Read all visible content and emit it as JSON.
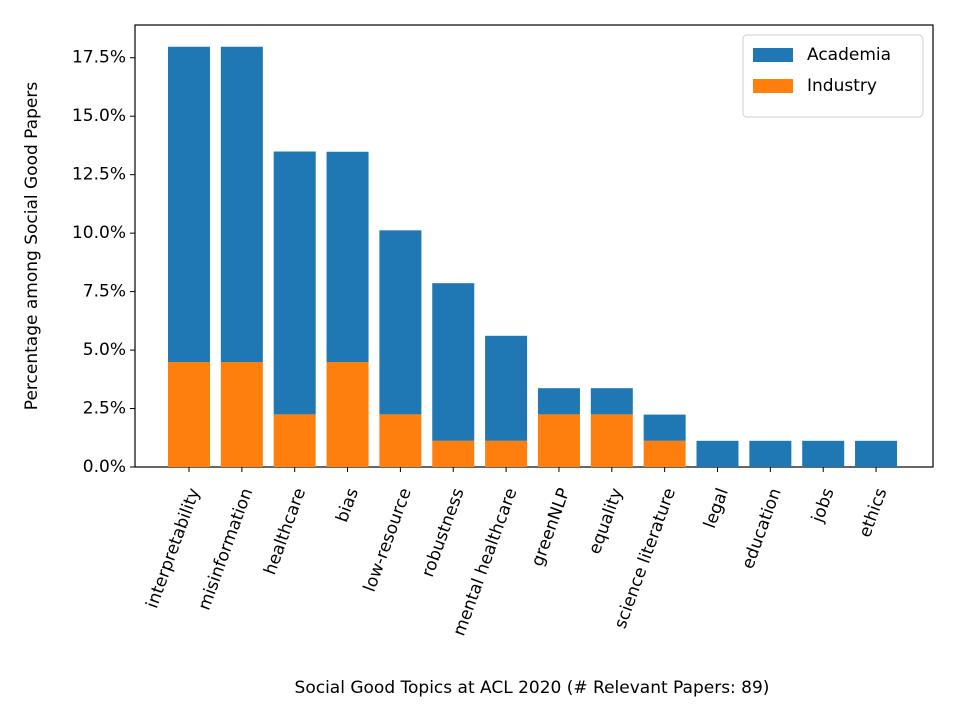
{
  "chart_data": {
    "type": "bar",
    "stacked": true,
    "xlabel": "Social Good Topics at ACL 2020 (# Relevant Papers: 89)",
    "ylabel": "Percentage among Social Good Papers",
    "categories": [
      "interpretability",
      "misinformation",
      "healthcare",
      "bias",
      "low-resource",
      "robustness",
      "mental healthcare",
      "greenNLP",
      "equality",
      "science literature",
      "legal",
      "education",
      "jobs",
      "ethics"
    ],
    "series": [
      {
        "name": "Academia",
        "color": "#1f77b4",
        "values": [
          13.48,
          13.48,
          11.24,
          8.99,
          7.87,
          6.74,
          4.49,
          1.12,
          1.12,
          1.12,
          1.12,
          1.12,
          1.12,
          1.12
        ]
      },
      {
        "name": "Industry",
        "color": "#ff7f0e",
        "values": [
          4.49,
          4.49,
          2.25,
          4.49,
          2.25,
          1.12,
          1.12,
          2.25,
          2.25,
          1.12,
          0,
          0,
          0,
          0
        ]
      }
    ],
    "ylim": [
      0,
      18.9
    ],
    "yticks": [
      {
        "value": 0,
        "label": "0.0%"
      },
      {
        "value": 2.5,
        "label": "2.5%"
      },
      {
        "value": 5,
        "label": "5.0%"
      },
      {
        "value": 7.5,
        "label": "7.5%"
      },
      {
        "value": 10,
        "label": "10.0%"
      },
      {
        "value": 12.5,
        "label": "12.5%"
      },
      {
        "value": 15,
        "label": "15.0%"
      },
      {
        "value": 17.5,
        "label": "17.5%"
      }
    ],
    "legend": "upper right",
    "grid": false
  }
}
